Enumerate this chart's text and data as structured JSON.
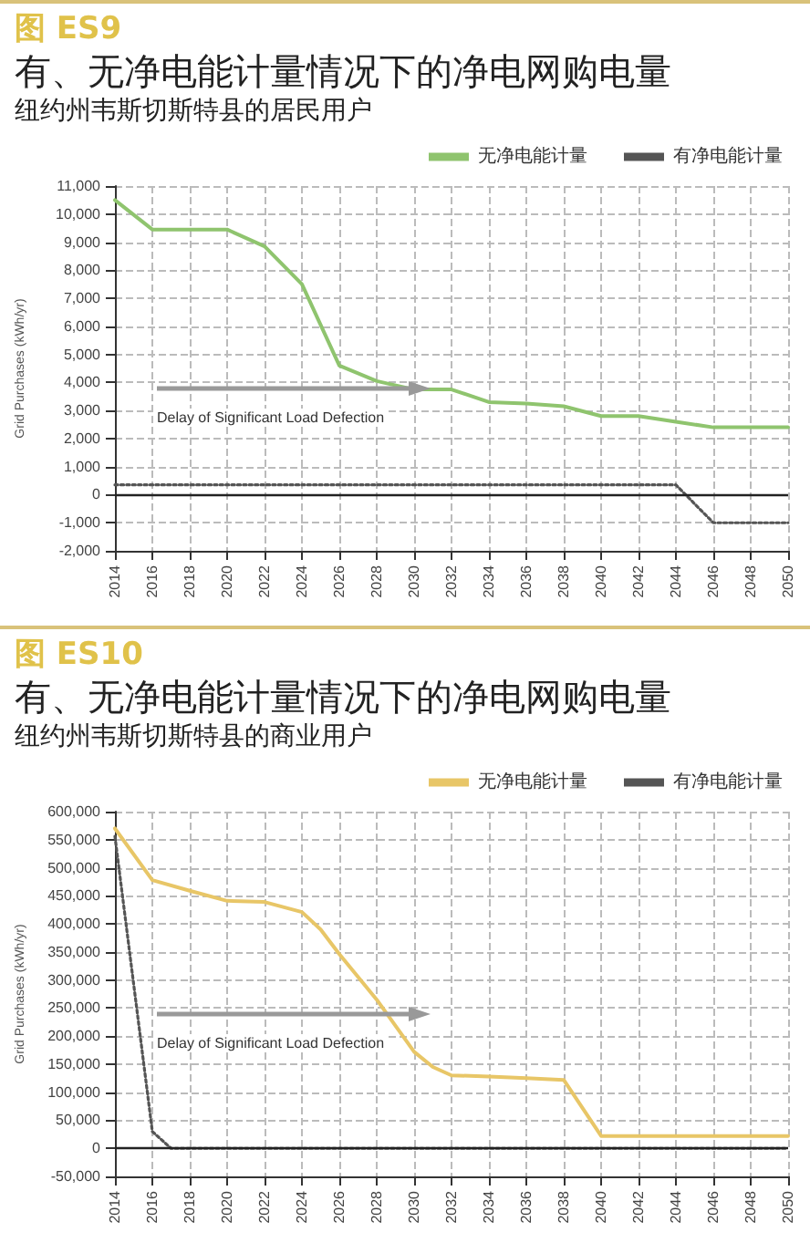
{
  "chart_data": [
    {
      "type": "line",
      "title": "有、无净电能计量情况下的净电网购电量",
      "subtitle": "纽约州韦斯切斯特县的居民用户",
      "ylabel": "Grid Purchases (kWh/yr)",
      "annotations": [
        "图 ES9",
        "Delay of Significant Load Defection"
      ],
      "xlim": [
        2014,
        2050
      ],
      "xticks": [
        2014,
        2016,
        2018,
        2020,
        2022,
        2024,
        2026,
        2028,
        2030,
        2032,
        2034,
        2036,
        2038,
        2040,
        2042,
        2044,
        2046,
        2048,
        2050
      ],
      "ylim": [
        -2000,
        11000
      ],
      "yticks": [
        {
          "value": -2000,
          "label": "-2,000"
        },
        {
          "value": -1000,
          "label": "-1,000"
        },
        0,
        {
          "value": 1000,
          "label": "1,000"
        },
        {
          "value": 2000,
          "label": "2,000"
        },
        {
          "value": 3000,
          "label": "3,000"
        },
        {
          "value": 4000,
          "label": "4,000"
        },
        {
          "value": 5000,
          "label": "5,000"
        },
        {
          "value": 6000,
          "label": "6,000"
        },
        {
          "value": 7000,
          "label": "7,000"
        },
        {
          "value": 8000,
          "label": "8,000"
        },
        {
          "value": 9000,
          "label": "9,000"
        },
        {
          "value": 10000,
          "label": "10,000"
        },
        {
          "value": 11000,
          "label": "11,000"
        }
      ],
      "grid": true,
      "legend": "top right",
      "marker": "none",
      "series": [
        {
          "name": "无净电能计量",
          "color": "#8fc46e",
          "line_style": "solid",
          "x": [
            2014,
            2016,
            2018,
            2020,
            2022,
            2024,
            2026,
            2028,
            2030,
            2032,
            2034,
            2036,
            2038,
            2040,
            2042,
            2044,
            2046,
            2048,
            2050
          ],
          "values": [
            10500,
            9450,
            9450,
            9450,
            8850,
            7500,
            4600,
            4050,
            3750,
            3750,
            3300,
            3250,
            3150,
            2800,
            2800,
            2600,
            2400,
            2400,
            2400
          ]
        },
        {
          "name": "有净电能计量",
          "color": "#555555",
          "line_style": "dotted",
          "x": [
            2014,
            2044,
            2046,
            2050
          ],
          "values": [
            350,
            350,
            -1000,
            -1000
          ]
        }
      ]
    },
    {
      "type": "line",
      "title": "有、无净电能计量情况下的净电网购电量",
      "subtitle": "纽约州韦斯切斯特县的商业用户",
      "ylabel": "Grid Purchases (kWh/yr)",
      "annotations": [
        "图 ES10",
        "Delay of Significant Load Defection"
      ],
      "xlim": [
        2014,
        2050
      ],
      "xticks": [
        2014,
        2016,
        2018,
        2020,
        2022,
        2024,
        2026,
        2028,
        2030,
        2032,
        2034,
        2036,
        2038,
        2040,
        2042,
        2044,
        2046,
        2048,
        2050
      ],
      "ylim": [
        -50000,
        600000
      ],
      "yticks": [
        {
          "value": -50000,
          "label": "-50,000"
        },
        0,
        {
          "value": 50000,
          "label": "50,000"
        },
        {
          "value": 100000,
          "label": "100,000"
        },
        {
          "value": 150000,
          "label": "150,000"
        },
        {
          "value": 200000,
          "label": "200,000"
        },
        {
          "value": 250000,
          "label": "250,000"
        },
        {
          "value": 300000,
          "label": "300,000"
        },
        {
          "value": 350000,
          "label": "350,000"
        },
        {
          "value": 400000,
          "label": "400,000"
        },
        {
          "value": 450000,
          "label": "450,000"
        },
        {
          "value": 500000,
          "label": "500,000"
        },
        {
          "value": 550000,
          "label": "550,000"
        },
        {
          "value": 600000,
          "label": "600,000"
        }
      ],
      "grid": true,
      "legend": "top right",
      "marker": "none",
      "series": [
        {
          "name": "无净电能计量",
          "color": "#e8c667",
          "line_style": "solid",
          "x": [
            2014,
            2016,
            2018,
            2020,
            2022,
            2024,
            2025,
            2026,
            2028,
            2030,
            2031,
            2032,
            2034,
            2036,
            2038,
            2040,
            2042,
            2044,
            2046,
            2048,
            2050
          ],
          "values": [
            570000,
            478000,
            459000,
            441000,
            439000,
            421000,
            390000,
            346000,
            265000,
            172000,
            145000,
            130000,
            128000,
            125000,
            122000,
            22000,
            22000,
            22000,
            22000,
            22000,
            22000
          ]
        },
        {
          "name": "有净电能计量",
          "color": "#555555",
          "line_style": "dotted",
          "x": [
            2014,
            2016,
            2017,
            2050
          ],
          "values": [
            556000,
            30000,
            0,
            0
          ]
        }
      ]
    }
  ]
}
